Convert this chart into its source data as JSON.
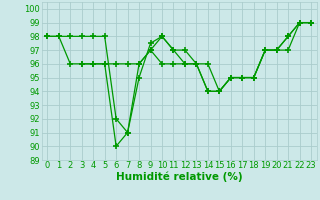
{
  "xlabel": "Humidité relative (%)",
  "background_color": "#cce8e8",
  "grid_color": "#aacccc",
  "line_color": "#009900",
  "xlim": [
    -0.5,
    23.5
  ],
  "ylim": [
    89,
    100.5
  ],
  "xticks": [
    0,
    1,
    2,
    3,
    4,
    5,
    6,
    7,
    8,
    9,
    10,
    11,
    12,
    13,
    14,
    15,
    16,
    17,
    18,
    19,
    20,
    21,
    22,
    23
  ],
  "yticks": [
    89,
    90,
    91,
    92,
    93,
    94,
    95,
    96,
    97,
    98,
    99,
    100
  ],
  "line1_x": [
    0,
    1,
    2,
    3,
    4,
    5,
    6,
    7,
    8,
    9,
    10,
    11,
    12,
    13,
    14,
    15,
    16,
    17,
    18,
    19,
    20,
    21,
    22,
    23
  ],
  "line1_y": [
    98,
    98,
    98,
    98,
    98,
    98,
    92,
    91,
    95,
    97.5,
    98,
    97,
    96,
    96,
    94,
    94,
    95,
    95,
    95,
    97,
    97,
    98,
    99,
    99
  ],
  "line2_x": [
    0,
    1,
    2,
    3,
    4,
    5,
    6,
    7,
    8,
    9,
    10,
    11,
    12,
    13,
    14,
    15,
    16,
    17,
    18,
    19,
    20,
    21,
    22,
    23
  ],
  "line2_y": [
    98,
    98,
    96,
    96,
    96,
    96,
    90,
    91,
    96,
    97,
    98,
    97,
    97,
    96,
    96,
    94,
    95,
    95,
    95,
    97,
    97,
    98,
    99,
    99
  ],
  "line3_x": [
    3,
    4,
    5,
    6,
    7,
    8,
    9,
    10,
    11,
    12,
    13,
    14,
    15,
    16,
    17,
    18,
    19,
    20,
    21,
    22,
    23
  ],
  "line3_y": [
    96,
    96,
    96,
    96,
    96,
    96,
    97,
    96,
    96,
    96,
    96,
    94,
    94,
    95,
    95,
    95,
    97,
    97,
    97,
    99,
    99
  ],
  "marker": "+",
  "markersize": 4,
  "markeredgewidth": 1.2,
  "linewidth": 0.9,
  "xlabel_fontsize": 7.5,
  "tick_fontsize": 6
}
